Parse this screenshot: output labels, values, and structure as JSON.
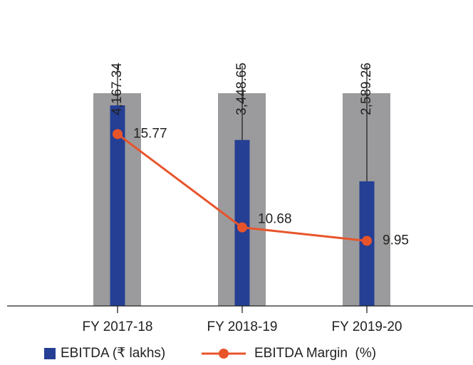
{
  "chart_data": {
    "type": "bar",
    "categories": [
      "FY 2017-18",
      "FY 2018-19",
      "FY 2019-20"
    ],
    "series": [
      {
        "name": "EBITDA (₹ lakhs)",
        "color": "#253f94",
        "values": [
          4167.34,
          3448.65,
          2589.26
        ],
        "value_labels": [
          "4,167.34",
          "3,448.65",
          "2,589.26"
        ]
      },
      {
        "name": "EBITDA Margin  (%)",
        "type": "line",
        "color": "#e8542a",
        "axis": "y2",
        "values": [
          15.77,
          10.68,
          9.95
        ]
      }
    ],
    "ylim": [
      0,
      4420
    ],
    "y2lim": [
      6.4,
      18.0
    ],
    "background_color": "#9b9b9d",
    "legend": "bottom"
  }
}
